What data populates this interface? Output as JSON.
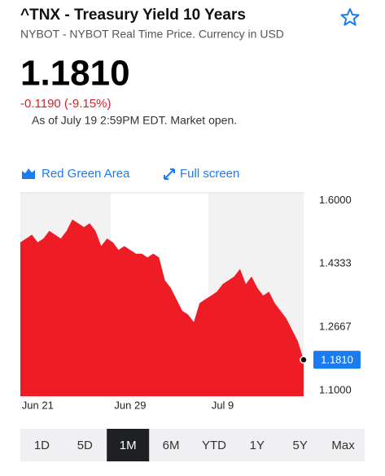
{
  "header": {
    "title": "^TNX - Treasury Yield 10 Years",
    "subtitle": "NYBOT - NYBOT Real Time Price. Currency in USD"
  },
  "quote": {
    "price": "1.1810",
    "change": "-0.1190 (-9.15%)",
    "as_of": "As of July 19 2:59PM EDT. Market open."
  },
  "toolbar": {
    "chart_style": "Red Green Area",
    "full_screen": "Full screen"
  },
  "chart_data": {
    "type": "area",
    "categories": [
      null,
      null,
      null,
      "Jun 21",
      null,
      null,
      null,
      null,
      null,
      null,
      null,
      null,
      null,
      null,
      null,
      null,
      null,
      null,
      null,
      "Jun 29",
      null,
      null,
      null,
      null,
      null,
      null,
      null,
      null,
      null,
      null,
      null,
      null,
      null,
      null,
      null,
      "Jul 9",
      null,
      null,
      null,
      null,
      null,
      null,
      null,
      null,
      null,
      null,
      null,
      null,
      null,
      null
    ],
    "values": [
      1.49,
      1.5,
      1.51,
      1.49,
      1.5,
      1.52,
      1.51,
      1.5,
      1.52,
      1.55,
      1.54,
      1.53,
      1.54,
      1.52,
      1.48,
      1.5,
      1.49,
      1.47,
      1.48,
      1.47,
      1.46,
      1.46,
      1.45,
      1.46,
      1.45,
      1.39,
      1.37,
      1.34,
      1.31,
      1.3,
      1.28,
      1.33,
      1.34,
      1.35,
      1.36,
      1.38,
      1.39,
      1.4,
      1.42,
      1.38,
      1.4,
      1.37,
      1.35,
      1.36,
      1.33,
      1.31,
      1.29,
      1.26,
      1.23,
      1.181
    ],
    "color": "#ee1d25",
    "ylim": [
      1.085,
      1.62
    ],
    "yticks": [
      {
        "value": 1.6,
        "label": "1.6000"
      },
      1.4333,
      1.2667,
      {
        "value": 1.1,
        "label": "1.1000"
      }
    ]
  },
  "ranges": {
    "options": [
      "1D",
      "5D",
      "1M",
      "6M",
      "YTD",
      "1Y",
      "5Y",
      "Max"
    ],
    "selected": 2
  }
}
